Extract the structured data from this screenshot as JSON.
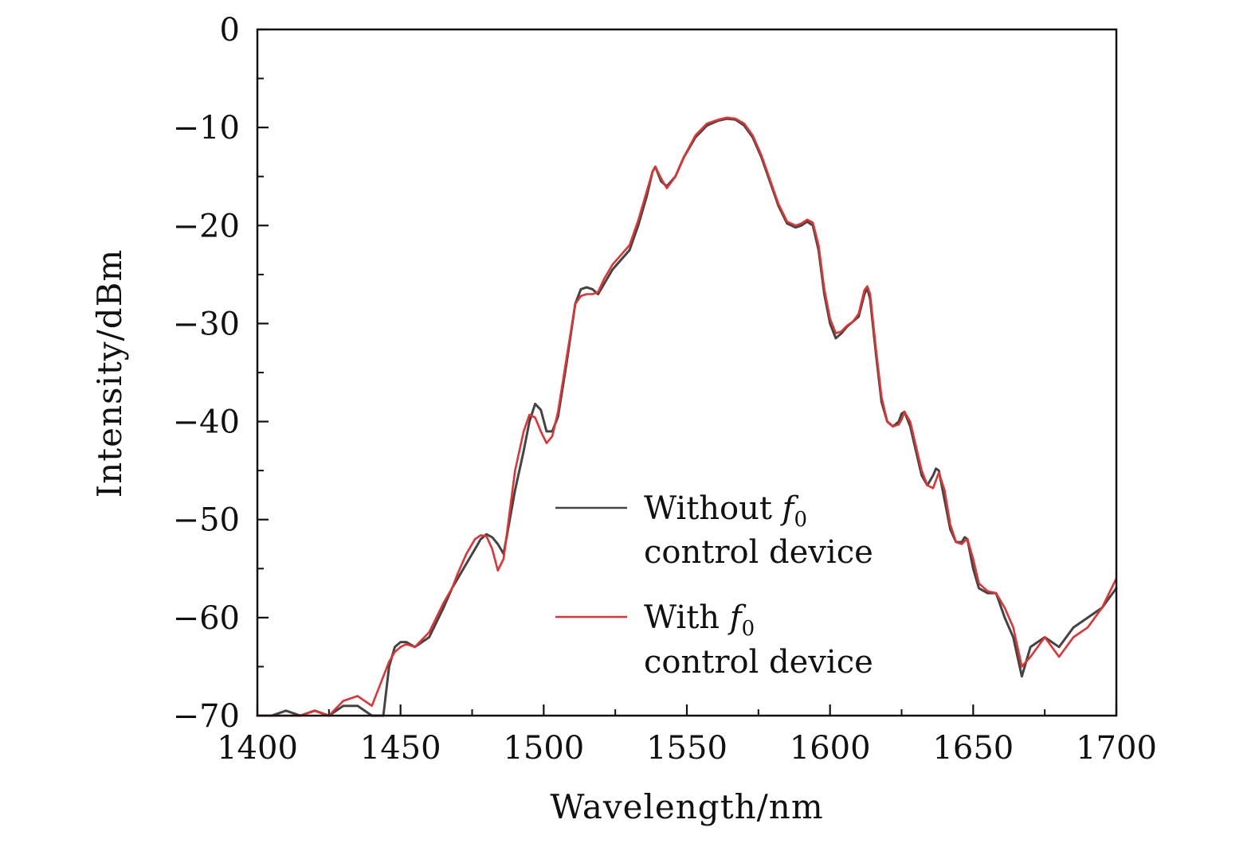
{
  "chart_data": {
    "type": "line",
    "title": "",
    "xlabel": "Wavelength/nm",
    "ylabel": "Intensity/dBm",
    "xlim": [
      1400,
      1700
    ],
    "ylim": [
      -70,
      0
    ],
    "xticks": [
      1400,
      1450,
      1500,
      1550,
      1600,
      1650,
      1700
    ],
    "xtick_labels": [
      "1400",
      "1450",
      "1500",
      "1550",
      "1600",
      "1650",
      "1700"
    ],
    "yticks": [
      0,
      -10,
      -20,
      -30,
      -40,
      -50,
      -60,
      -70
    ],
    "ytick_labels": [
      "0",
      "−10",
      "−20",
      "−30",
      "−40",
      "−50",
      "−60",
      "−70"
    ],
    "grid": false,
    "legend_position": "lower-right",
    "series": [
      {
        "name": "Without f0 control device",
        "legend_lines": [
          "Without ",
          "f",
          "0",
          "control device"
        ],
        "color": "#444444",
        "x": [
          1400,
          1405,
          1410,
          1415,
          1420,
          1425,
          1430,
          1435,
          1440,
          1444,
          1446,
          1448,
          1450,
          1452,
          1455,
          1460,
          1465,
          1468,
          1470,
          1473,
          1476,
          1478,
          1480,
          1482,
          1484,
          1486,
          1490,
          1493,
          1495,
          1497,
          1499,
          1501,
          1503,
          1505,
          1508,
          1511,
          1513,
          1515,
          1517,
          1519,
          1521,
          1524,
          1527,
          1530,
          1533,
          1536,
          1538,
          1539,
          1541,
          1543,
          1546,
          1549,
          1553,
          1557,
          1561,
          1564,
          1567,
          1570,
          1573,
          1576,
          1579,
          1582,
          1585,
          1588,
          1590,
          1592,
          1594,
          1596,
          1598,
          1600,
          1602,
          1604,
          1606,
          1608,
          1610,
          1612,
          1613,
          1614,
          1616,
          1618,
          1620,
          1622,
          1624,
          1625,
          1626,
          1628,
          1630,
          1632,
          1634,
          1636,
          1637,
          1638,
          1640,
          1642,
          1644,
          1646,
          1647,
          1648,
          1650,
          1652,
          1655,
          1658,
          1661,
          1664,
          1667,
          1670,
          1675,
          1680,
          1685,
          1690,
          1695,
          1700
        ],
        "y": [
          -70,
          -70,
          -69.5,
          -70,
          -69.5,
          -70,
          -69,
          -69,
          -70,
          -70,
          -65,
          -63,
          -62.5,
          -62.5,
          -63,
          -62,
          -59,
          -57,
          -56,
          -54.5,
          -53,
          -52,
          -51.5,
          -51.8,
          -52.5,
          -53.5,
          -47,
          -43,
          -40,
          -38.2,
          -38.8,
          -41,
          -41,
          -39.5,
          -34,
          -28,
          -26.5,
          -26.3,
          -26.5,
          -27,
          -26,
          -24.5,
          -23.5,
          -22.5,
          -20,
          -17,
          -14.5,
          -14,
          -15.5,
          -16,
          -15,
          -13,
          -11,
          -9.8,
          -9.3,
          -9.1,
          -9.2,
          -9.8,
          -11,
          -13,
          -15.5,
          -18,
          -19.8,
          -20.2,
          -20,
          -19.6,
          -20,
          -22.5,
          -27,
          -30,
          -31.5,
          -31,
          -30.3,
          -29.8,
          -29.3,
          -27,
          -26.4,
          -27.5,
          -33,
          -38,
          -40,
          -40.5,
          -40,
          -39.2,
          -39,
          -40.5,
          -43,
          -45.5,
          -46.5,
          -45.5,
          -44.8,
          -45,
          -48,
          -51,
          -52.3,
          -52.3,
          -51.8,
          -52,
          -55,
          -57,
          -57.5,
          -57.5,
          -60,
          -62,
          -66,
          -63,
          -62,
          -63,
          -61,
          -60,
          -59,
          -57
        ]
      },
      {
        "name": "With f0 control device",
        "legend_lines": [
          "With ",
          "f",
          "0",
          "control device"
        ],
        "color": "#e03333",
        "x": [
          1400,
          1405,
          1410,
          1415,
          1420,
          1425,
          1430,
          1435,
          1440,
          1444,
          1446,
          1448,
          1450,
          1452,
          1455,
          1460,
          1465,
          1468,
          1470,
          1473,
          1476,
          1478,
          1480,
          1482,
          1484,
          1486,
          1490,
          1493,
          1495,
          1497,
          1499,
          1501,
          1503,
          1505,
          1508,
          1511,
          1513,
          1515,
          1517,
          1519,
          1521,
          1524,
          1527,
          1530,
          1533,
          1536,
          1538,
          1539,
          1541,
          1543,
          1546,
          1549,
          1553,
          1557,
          1561,
          1564,
          1567,
          1570,
          1573,
          1576,
          1579,
          1582,
          1585,
          1588,
          1590,
          1592,
          1594,
          1596,
          1598,
          1600,
          1602,
          1604,
          1606,
          1608,
          1610,
          1612,
          1613,
          1614,
          1616,
          1618,
          1620,
          1622,
          1624,
          1625,
          1626,
          1628,
          1630,
          1632,
          1634,
          1636,
          1637,
          1638,
          1640,
          1642,
          1644,
          1646,
          1647,
          1648,
          1650,
          1652,
          1655,
          1658,
          1661,
          1664,
          1667,
          1670,
          1675,
          1680,
          1685,
          1690,
          1695,
          1700
        ],
        "y": [
          -70,
          -70,
          -70,
          -70,
          -69.5,
          -70,
          -68.5,
          -68,
          -69,
          -66,
          -64.5,
          -63.5,
          -63,
          -62.7,
          -63,
          -61.5,
          -58.5,
          -57,
          -55.5,
          -53.5,
          -52,
          -51.6,
          -51.7,
          -53,
          -55.2,
          -54,
          -45,
          -41,
          -39.3,
          -39.6,
          -41,
          -42.2,
          -41.5,
          -39,
          -33.5,
          -28,
          -27.2,
          -27,
          -27,
          -26.8,
          -25.5,
          -24,
          -23,
          -22,
          -19.5,
          -16.5,
          -14.5,
          -14,
          -15.2,
          -16.2,
          -15,
          -13,
          -10.8,
          -9.6,
          -9.2,
          -9,
          -9.1,
          -9.6,
          -10.8,
          -12.8,
          -15.3,
          -17.8,
          -19.6,
          -20,
          -19.8,
          -19.4,
          -19.7,
          -22,
          -26.5,
          -29.5,
          -31,
          -30.8,
          -30.2,
          -29.8,
          -29,
          -26.6,
          -26.2,
          -27,
          -32.5,
          -37.5,
          -40,
          -40.5,
          -40.3,
          -39.8,
          -39,
          -40,
          -42.5,
          -45,
          -46.5,
          -46.8,
          -46,
          -45.2,
          -47,
          -50.5,
          -52.3,
          -52.5,
          -52.2,
          -52,
          -54,
          -56.5,
          -57.3,
          -57.5,
          -59,
          -61,
          -65,
          -64,
          -62,
          -64,
          -62,
          -61,
          -59,
          -56
        ]
      }
    ]
  }
}
